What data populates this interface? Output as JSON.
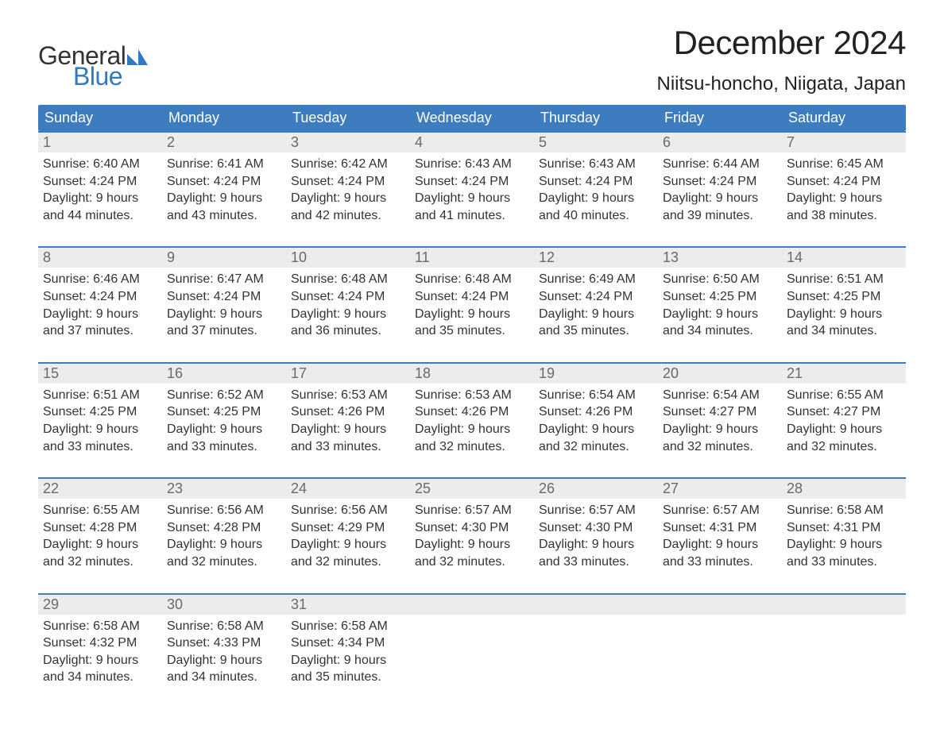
{
  "logo": {
    "word1": "General",
    "word2": "Blue",
    "mark_color": "#2f7ac0"
  },
  "title": "December 2024",
  "location": "Niitsu-honcho, Niigata, Japan",
  "colors": {
    "header_bg": "#3d7cbf",
    "header_text": "#ffffff",
    "daynum_bg": "#ececec",
    "daynum_text": "#6a6a6a",
    "week_border": "#3d7cbf",
    "body_text": "#333333"
  },
  "weekdays": [
    "Sunday",
    "Monday",
    "Tuesday",
    "Wednesday",
    "Thursday",
    "Friday",
    "Saturday"
  ],
  "weeks": [
    [
      {
        "n": "1",
        "sunrise": "6:40 AM",
        "sunset": "4:24 PM",
        "dl1": "9 hours",
        "dl2": "and 44 minutes."
      },
      {
        "n": "2",
        "sunrise": "6:41 AM",
        "sunset": "4:24 PM",
        "dl1": "9 hours",
        "dl2": "and 43 minutes."
      },
      {
        "n": "3",
        "sunrise": "6:42 AM",
        "sunset": "4:24 PM",
        "dl1": "9 hours",
        "dl2": "and 42 minutes."
      },
      {
        "n": "4",
        "sunrise": "6:43 AM",
        "sunset": "4:24 PM",
        "dl1": "9 hours",
        "dl2": "and 41 minutes."
      },
      {
        "n": "5",
        "sunrise": "6:43 AM",
        "sunset": "4:24 PM",
        "dl1": "9 hours",
        "dl2": "and 40 minutes."
      },
      {
        "n": "6",
        "sunrise": "6:44 AM",
        "sunset": "4:24 PM",
        "dl1": "9 hours",
        "dl2": "and 39 minutes."
      },
      {
        "n": "7",
        "sunrise": "6:45 AM",
        "sunset": "4:24 PM",
        "dl1": "9 hours",
        "dl2": "and 38 minutes."
      }
    ],
    [
      {
        "n": "8",
        "sunrise": "6:46 AM",
        "sunset": "4:24 PM",
        "dl1": "9 hours",
        "dl2": "and 37 minutes."
      },
      {
        "n": "9",
        "sunrise": "6:47 AM",
        "sunset": "4:24 PM",
        "dl1": "9 hours",
        "dl2": "and 37 minutes."
      },
      {
        "n": "10",
        "sunrise": "6:48 AM",
        "sunset": "4:24 PM",
        "dl1": "9 hours",
        "dl2": "and 36 minutes."
      },
      {
        "n": "11",
        "sunrise": "6:48 AM",
        "sunset": "4:24 PM",
        "dl1": "9 hours",
        "dl2": "and 35 minutes."
      },
      {
        "n": "12",
        "sunrise": "6:49 AM",
        "sunset": "4:24 PM",
        "dl1": "9 hours",
        "dl2": "and 35 minutes."
      },
      {
        "n": "13",
        "sunrise": "6:50 AM",
        "sunset": "4:25 PM",
        "dl1": "9 hours",
        "dl2": "and 34 minutes."
      },
      {
        "n": "14",
        "sunrise": "6:51 AM",
        "sunset": "4:25 PM",
        "dl1": "9 hours",
        "dl2": "and 34 minutes."
      }
    ],
    [
      {
        "n": "15",
        "sunrise": "6:51 AM",
        "sunset": "4:25 PM",
        "dl1": "9 hours",
        "dl2": "and 33 minutes."
      },
      {
        "n": "16",
        "sunrise": "6:52 AM",
        "sunset": "4:25 PM",
        "dl1": "9 hours",
        "dl2": "and 33 minutes."
      },
      {
        "n": "17",
        "sunrise": "6:53 AM",
        "sunset": "4:26 PM",
        "dl1": "9 hours",
        "dl2": "and 33 minutes."
      },
      {
        "n": "18",
        "sunrise": "6:53 AM",
        "sunset": "4:26 PM",
        "dl1": "9 hours",
        "dl2": "and 32 minutes."
      },
      {
        "n": "19",
        "sunrise": "6:54 AM",
        "sunset": "4:26 PM",
        "dl1": "9 hours",
        "dl2": "and 32 minutes."
      },
      {
        "n": "20",
        "sunrise": "6:54 AM",
        "sunset": "4:27 PM",
        "dl1": "9 hours",
        "dl2": "and 32 minutes."
      },
      {
        "n": "21",
        "sunrise": "6:55 AM",
        "sunset": "4:27 PM",
        "dl1": "9 hours",
        "dl2": "and 32 minutes."
      }
    ],
    [
      {
        "n": "22",
        "sunrise": "6:55 AM",
        "sunset": "4:28 PM",
        "dl1": "9 hours",
        "dl2": "and 32 minutes."
      },
      {
        "n": "23",
        "sunrise": "6:56 AM",
        "sunset": "4:28 PM",
        "dl1": "9 hours",
        "dl2": "and 32 minutes."
      },
      {
        "n": "24",
        "sunrise": "6:56 AM",
        "sunset": "4:29 PM",
        "dl1": "9 hours",
        "dl2": "and 32 minutes."
      },
      {
        "n": "25",
        "sunrise": "6:57 AM",
        "sunset": "4:30 PM",
        "dl1": "9 hours",
        "dl2": "and 32 minutes."
      },
      {
        "n": "26",
        "sunrise": "6:57 AM",
        "sunset": "4:30 PM",
        "dl1": "9 hours",
        "dl2": "and 33 minutes."
      },
      {
        "n": "27",
        "sunrise": "6:57 AM",
        "sunset": "4:31 PM",
        "dl1": "9 hours",
        "dl2": "and 33 minutes."
      },
      {
        "n": "28",
        "sunrise": "6:58 AM",
        "sunset": "4:31 PM",
        "dl1": "9 hours",
        "dl2": "and 33 minutes."
      }
    ],
    [
      {
        "n": "29",
        "sunrise": "6:58 AM",
        "sunset": "4:32 PM",
        "dl1": "9 hours",
        "dl2": "and 34 minutes."
      },
      {
        "n": "30",
        "sunrise": "6:58 AM",
        "sunset": "4:33 PM",
        "dl1": "9 hours",
        "dl2": "and 34 minutes."
      },
      {
        "n": "31",
        "sunrise": "6:58 AM",
        "sunset": "4:34 PM",
        "dl1": "9 hours",
        "dl2": "and 35 minutes."
      },
      null,
      null,
      null,
      null
    ]
  ],
  "labels": {
    "sunrise": "Sunrise:",
    "sunset": "Sunset:",
    "daylight": "Daylight:"
  }
}
